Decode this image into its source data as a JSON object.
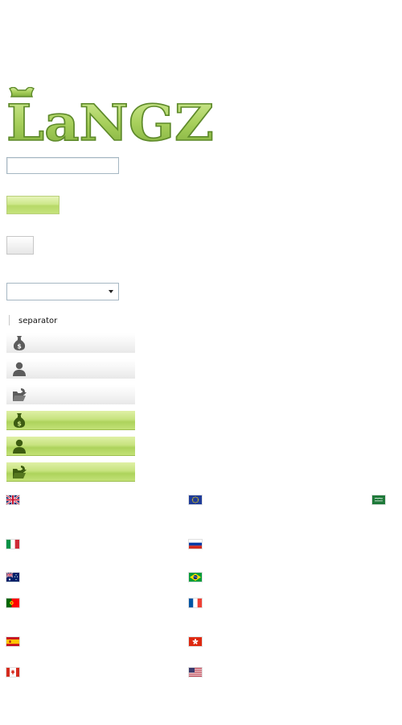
{
  "logo": {
    "text": "LaNGZ",
    "icon": "langz-logo",
    "fill_color": "#a8d05c",
    "stroke_color": "#5e8a2a"
  },
  "text_input": {
    "value": "",
    "placeholder": ""
  },
  "dropdown": {
    "selected": ""
  },
  "separator": {
    "label": "separator"
  },
  "menu": {
    "items": [
      {
        "icon": "money-bag-icon",
        "style": "gray"
      },
      {
        "icon": "user-icon",
        "style": "gray"
      },
      {
        "icon": "folder-icon",
        "style": "gray"
      },
      {
        "icon": "money-bag-icon",
        "style": "green"
      },
      {
        "icon": "user-icon",
        "style": "green"
      },
      {
        "icon": "folder-icon",
        "style": "green"
      }
    ],
    "gray_icon_color": "#5c5c5c",
    "green_icon_color": "#3d5c12",
    "green_accent": "#c7e37f"
  },
  "flags": [
    {
      "country": "united-kingdom"
    },
    {
      "country": "european-union"
    },
    {
      "country": "saudi-arabia"
    },
    {
      "country": "italy"
    },
    {
      "country": "russia"
    },
    {
      "country": "australia"
    },
    {
      "country": "brazil"
    },
    {
      "country": "portugal"
    },
    {
      "country": "france"
    },
    {
      "country": "spain"
    },
    {
      "country": "hong-kong"
    },
    {
      "country": "canada"
    },
    {
      "country": "united-states"
    }
  ]
}
